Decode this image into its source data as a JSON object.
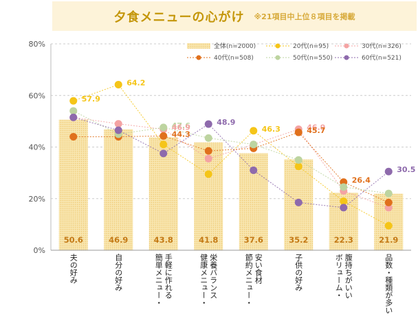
{
  "title": "夕食メニューの心がけ",
  "note": "※21項目中上位８項目を掲載",
  "colors": {
    "bar": "#f5d98e",
    "grid": "#cccccc",
    "title_bg": "#fdf3d9",
    "title_text": "#c4960a",
    "bar_label": "#c47a16"
  },
  "chart_data": {
    "type": "bar",
    "ylim": [
      0,
      80
    ],
    "yticks": [
      "0%",
      "20%",
      "40%",
      "60%",
      "80%"
    ],
    "categories": [
      [
        "夫の好み"
      ],
      [
        "自分の好み"
      ],
      [
        "簡単メニュー・",
        "手軽に作れる"
      ],
      [
        "健康メニュー・",
        "栄養バランス"
      ],
      [
        "節約メニュー・",
        "安い食材"
      ],
      [
        "子供の好み"
      ],
      [
        "ボリューム・",
        "腹持ちがいい"
      ],
      [
        "品数・種類が多い"
      ]
    ],
    "bar_series": {
      "name": "全体(n=2000)",
      "values": [
        50.6,
        46.9,
        43.8,
        41.8,
        37.6,
        35.2,
        22.3,
        21.9
      ],
      "labels": [
        "50.6",
        "46.9",
        "43.8",
        "41.8",
        "37.6",
        "35.2",
        "22.3",
        "21.9"
      ]
    },
    "point_series": [
      {
        "name": "20代(n=95)",
        "color": "#f5c518",
        "values": [
          57.9,
          64.2,
          41.0,
          29.5,
          46.3,
          32.5,
          19.0,
          9.5
        ]
      },
      {
        "name": "30代(n=326)",
        "color": "#f4a3a3",
        "values": [
          51.5,
          49.0,
          46.9,
          35.5,
          41.0,
          46.9,
          23.0,
          16.5
        ]
      },
      {
        "name": "40代(n=508)",
        "color": "#e0701c",
        "values": [
          44.0,
          44.0,
          44.3,
          38.5,
          39.5,
          45.7,
          26.4,
          18.5
        ]
      },
      {
        "name": "50代(n=550)",
        "color": "#bdd4a0",
        "values": [
          54.0,
          45.0,
          47.6,
          43.5,
          41.0,
          35.0,
          24.5,
          22.0
        ]
      },
      {
        "name": "60代(n=521)",
        "color": "#8e6aac",
        "values": [
          51.5,
          46.5,
          37.5,
          48.9,
          31.0,
          18.5,
          16.5,
          30.5
        ]
      }
    ],
    "annotations": [
      {
        "series": 0,
        "index": 0,
        "text": "57.9"
      },
      {
        "series": 0,
        "index": 1,
        "text": "64.2"
      },
      {
        "series": 3,
        "index": 2,
        "text": "47.6"
      },
      {
        "series": 1,
        "index": 2,
        "text": "46.9"
      },
      {
        "series": 2,
        "index": 2,
        "text": "44.3"
      },
      {
        "series": 4,
        "index": 3,
        "text": "48.9"
      },
      {
        "series": 0,
        "index": 4,
        "text": "46.3"
      },
      {
        "series": 1,
        "index": 5,
        "text": "46.9"
      },
      {
        "series": 2,
        "index": 5,
        "text": "45.7"
      },
      {
        "series": 2,
        "index": 6,
        "text": "26.4"
      },
      {
        "series": 4,
        "index": 7,
        "text": "30.5"
      }
    ]
  }
}
